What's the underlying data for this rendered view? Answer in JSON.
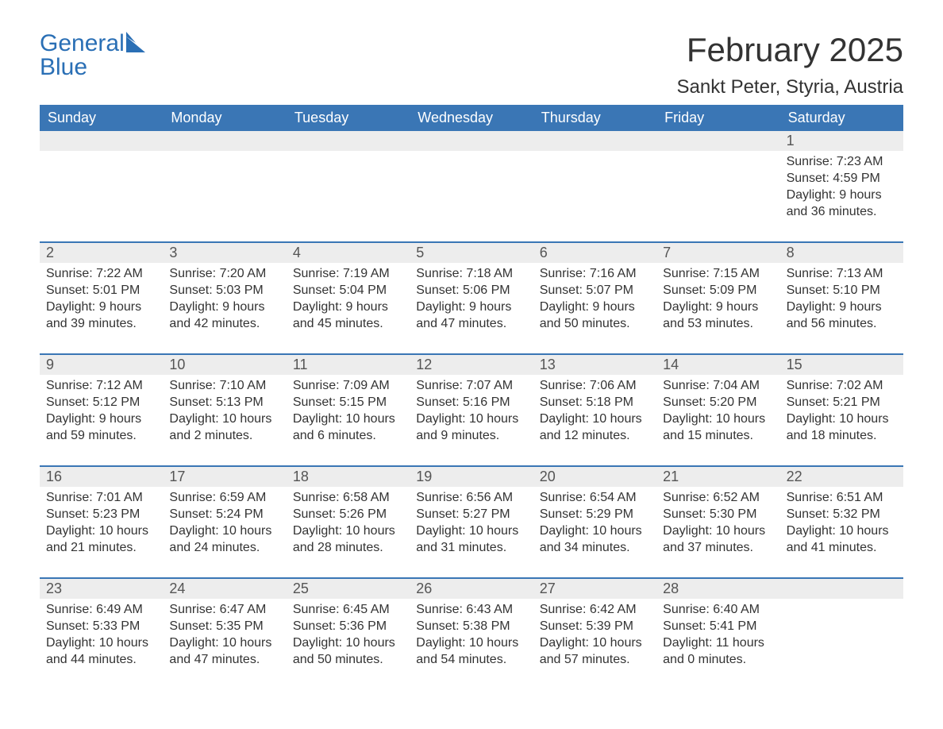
{
  "logo": {
    "word1": "General",
    "word2": "Blue"
  },
  "title": "February 2025",
  "location": "Sankt Peter, Styria, Austria",
  "colors": {
    "brand": "#2a6fb5",
    "headerBg": "#3a76b5",
    "headerText": "#ffffff",
    "rowStripe": "#ededed",
    "textDark": "#333333",
    "textMuted": "#555555",
    "pageBg": "#ffffff"
  },
  "dayHeaders": [
    "Sunday",
    "Monday",
    "Tuesday",
    "Wednesday",
    "Thursday",
    "Friday",
    "Saturday"
  ],
  "weeks": [
    [
      {
        "n": "",
        "lines": [
          "",
          "",
          "",
          ""
        ]
      },
      {
        "n": "",
        "lines": [
          "",
          "",
          "",
          ""
        ]
      },
      {
        "n": "",
        "lines": [
          "",
          "",
          "",
          ""
        ]
      },
      {
        "n": "",
        "lines": [
          "",
          "",
          "",
          ""
        ]
      },
      {
        "n": "",
        "lines": [
          "",
          "",
          "",
          ""
        ]
      },
      {
        "n": "",
        "lines": [
          "",
          "",
          "",
          ""
        ]
      },
      {
        "n": "1",
        "lines": [
          "Sunrise: 7:23 AM",
          "Sunset: 4:59 PM",
          "Daylight: 9 hours",
          "and 36 minutes."
        ]
      }
    ],
    [
      {
        "n": "2",
        "lines": [
          "Sunrise: 7:22 AM",
          "Sunset: 5:01 PM",
          "Daylight: 9 hours",
          "and 39 minutes."
        ]
      },
      {
        "n": "3",
        "lines": [
          "Sunrise: 7:20 AM",
          "Sunset: 5:03 PM",
          "Daylight: 9 hours",
          "and 42 minutes."
        ]
      },
      {
        "n": "4",
        "lines": [
          "Sunrise: 7:19 AM",
          "Sunset: 5:04 PM",
          "Daylight: 9 hours",
          "and 45 minutes."
        ]
      },
      {
        "n": "5",
        "lines": [
          "Sunrise: 7:18 AM",
          "Sunset: 5:06 PM",
          "Daylight: 9 hours",
          "and 47 minutes."
        ]
      },
      {
        "n": "6",
        "lines": [
          "Sunrise: 7:16 AM",
          "Sunset: 5:07 PM",
          "Daylight: 9 hours",
          "and 50 minutes."
        ]
      },
      {
        "n": "7",
        "lines": [
          "Sunrise: 7:15 AM",
          "Sunset: 5:09 PM",
          "Daylight: 9 hours",
          "and 53 minutes."
        ]
      },
      {
        "n": "8",
        "lines": [
          "Sunrise: 7:13 AM",
          "Sunset: 5:10 PM",
          "Daylight: 9 hours",
          "and 56 minutes."
        ]
      }
    ],
    [
      {
        "n": "9",
        "lines": [
          "Sunrise: 7:12 AM",
          "Sunset: 5:12 PM",
          "Daylight: 9 hours",
          "and 59 minutes."
        ]
      },
      {
        "n": "10",
        "lines": [
          "Sunrise: 7:10 AM",
          "Sunset: 5:13 PM",
          "Daylight: 10 hours",
          "and 2 minutes."
        ]
      },
      {
        "n": "11",
        "lines": [
          "Sunrise: 7:09 AM",
          "Sunset: 5:15 PM",
          "Daylight: 10 hours",
          "and 6 minutes."
        ]
      },
      {
        "n": "12",
        "lines": [
          "Sunrise: 7:07 AM",
          "Sunset: 5:16 PM",
          "Daylight: 10 hours",
          "and 9 minutes."
        ]
      },
      {
        "n": "13",
        "lines": [
          "Sunrise: 7:06 AM",
          "Sunset: 5:18 PM",
          "Daylight: 10 hours",
          "and 12 minutes."
        ]
      },
      {
        "n": "14",
        "lines": [
          "Sunrise: 7:04 AM",
          "Sunset: 5:20 PM",
          "Daylight: 10 hours",
          "and 15 minutes."
        ]
      },
      {
        "n": "15",
        "lines": [
          "Sunrise: 7:02 AM",
          "Sunset: 5:21 PM",
          "Daylight: 10 hours",
          "and 18 minutes."
        ]
      }
    ],
    [
      {
        "n": "16",
        "lines": [
          "Sunrise: 7:01 AM",
          "Sunset: 5:23 PM",
          "Daylight: 10 hours",
          "and 21 minutes."
        ]
      },
      {
        "n": "17",
        "lines": [
          "Sunrise: 6:59 AM",
          "Sunset: 5:24 PM",
          "Daylight: 10 hours",
          "and 24 minutes."
        ]
      },
      {
        "n": "18",
        "lines": [
          "Sunrise: 6:58 AM",
          "Sunset: 5:26 PM",
          "Daylight: 10 hours",
          "and 28 minutes."
        ]
      },
      {
        "n": "19",
        "lines": [
          "Sunrise: 6:56 AM",
          "Sunset: 5:27 PM",
          "Daylight: 10 hours",
          "and 31 minutes."
        ]
      },
      {
        "n": "20",
        "lines": [
          "Sunrise: 6:54 AM",
          "Sunset: 5:29 PM",
          "Daylight: 10 hours",
          "and 34 minutes."
        ]
      },
      {
        "n": "21",
        "lines": [
          "Sunrise: 6:52 AM",
          "Sunset: 5:30 PM",
          "Daylight: 10 hours",
          "and 37 minutes."
        ]
      },
      {
        "n": "22",
        "lines": [
          "Sunrise: 6:51 AM",
          "Sunset: 5:32 PM",
          "Daylight: 10 hours",
          "and 41 minutes."
        ]
      }
    ],
    [
      {
        "n": "23",
        "lines": [
          "Sunrise: 6:49 AM",
          "Sunset: 5:33 PM",
          "Daylight: 10 hours",
          "and 44 minutes."
        ]
      },
      {
        "n": "24",
        "lines": [
          "Sunrise: 6:47 AM",
          "Sunset: 5:35 PM",
          "Daylight: 10 hours",
          "and 47 minutes."
        ]
      },
      {
        "n": "25",
        "lines": [
          "Sunrise: 6:45 AM",
          "Sunset: 5:36 PM",
          "Daylight: 10 hours",
          "and 50 minutes."
        ]
      },
      {
        "n": "26",
        "lines": [
          "Sunrise: 6:43 AM",
          "Sunset: 5:38 PM",
          "Daylight: 10 hours",
          "and 54 minutes."
        ]
      },
      {
        "n": "27",
        "lines": [
          "Sunrise: 6:42 AM",
          "Sunset: 5:39 PM",
          "Daylight: 10 hours",
          "and 57 minutes."
        ]
      },
      {
        "n": "28",
        "lines": [
          "Sunrise: 6:40 AM",
          "Sunset: 5:41 PM",
          "Daylight: 11 hours",
          "and 0 minutes."
        ]
      },
      {
        "n": "",
        "lines": [
          "",
          "",
          "",
          ""
        ]
      }
    ]
  ]
}
